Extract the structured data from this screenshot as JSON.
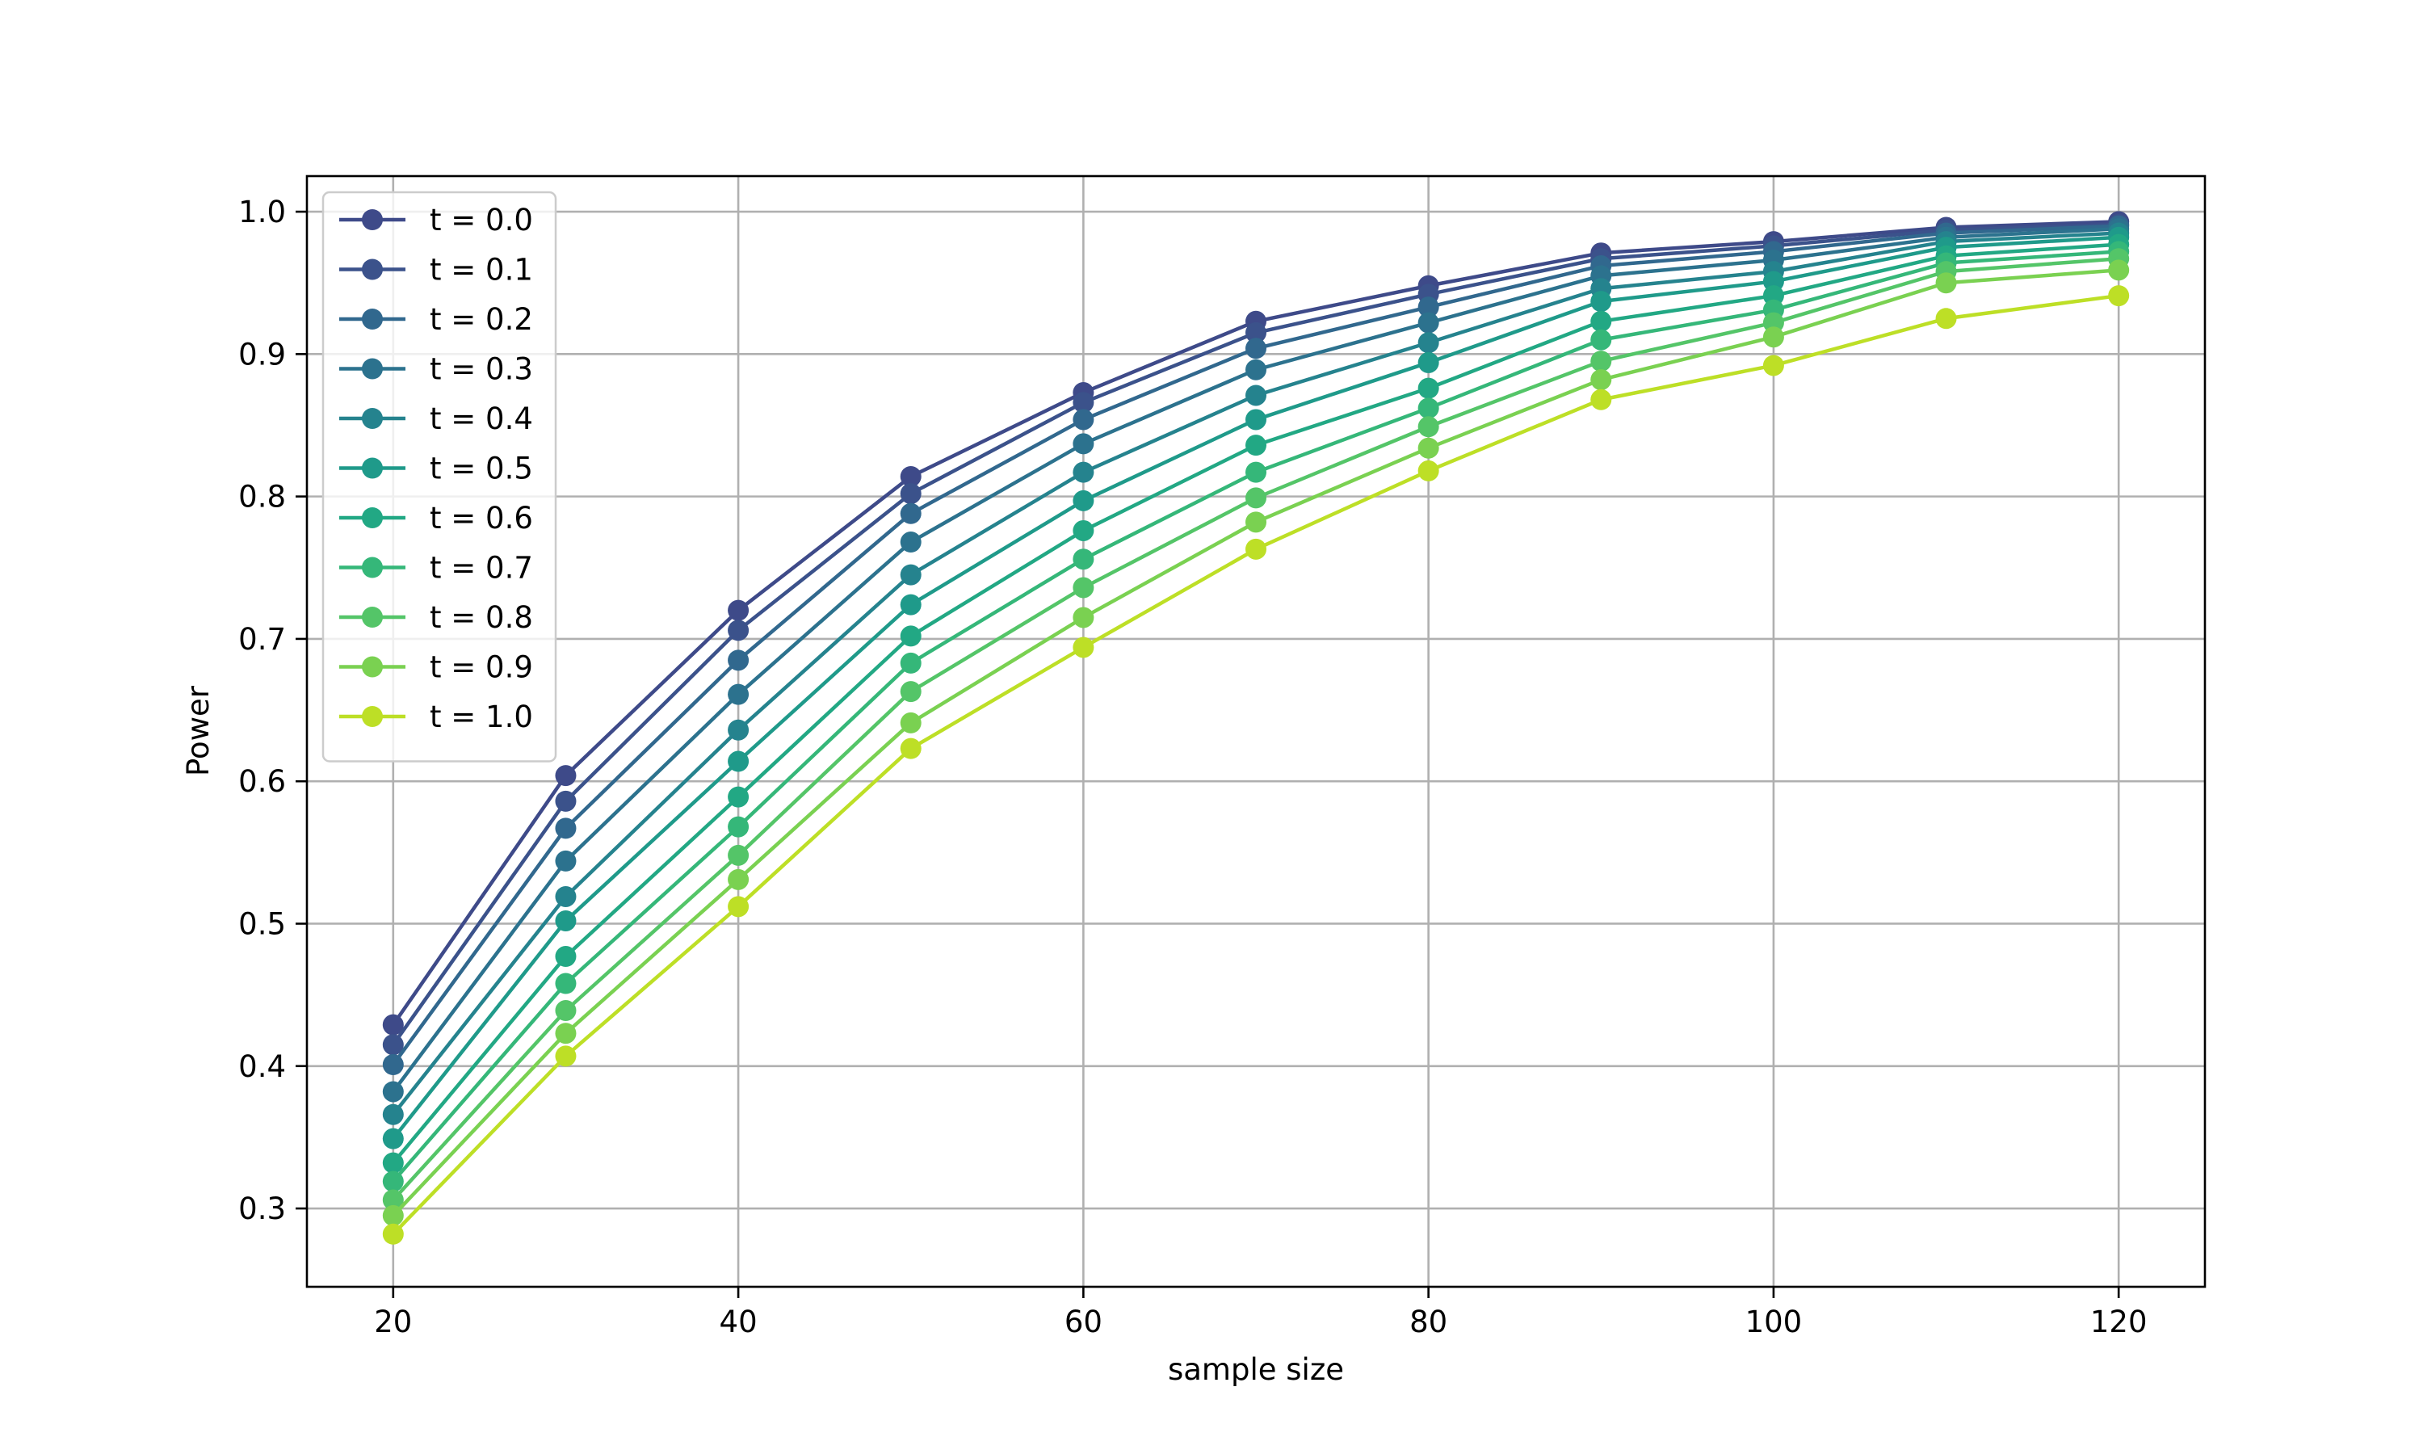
{
  "chart_data": {
    "type": "line",
    "title": "",
    "xlabel": "sample size",
    "ylabel": "Power",
    "xlim": [
      15,
      125
    ],
    "ylim": [
      0.245,
      1.025
    ],
    "x": [
      20,
      30,
      40,
      50,
      60,
      70,
      80,
      90,
      100,
      110,
      120
    ],
    "xticks": [
      20,
      40,
      60,
      80,
      100,
      120
    ],
    "xtick_labels": [
      "20",
      "40",
      "60",
      "80",
      "100",
      "120"
    ],
    "yticks": [
      0.3,
      0.4,
      0.5,
      0.6,
      0.7,
      0.8,
      0.9,
      1.0
    ],
    "ytick_labels": [
      "0.3",
      "0.4",
      "0.5",
      "0.6",
      "0.7",
      "0.8",
      "0.9",
      "1.0"
    ],
    "grid": true,
    "legend_position": "top-left",
    "marker": "circle",
    "series": [
      {
        "name": "t = 0.0",
        "color": "#3e4a89",
        "values": [
          0.429,
          0.604,
          0.72,
          0.814,
          0.873,
          0.923,
          0.948,
          0.971,
          0.979,
          0.989,
          0.993
        ]
      },
      {
        "name": "t = 0.1",
        "color": "#3b528b",
        "values": [
          0.415,
          0.586,
          0.706,
          0.802,
          0.866,
          0.915,
          0.942,
          0.967,
          0.976,
          0.987,
          0.991
        ]
      },
      {
        "name": "t = 0.2",
        "color": "#31688e",
        "values": [
          0.401,
          0.567,
          0.685,
          0.788,
          0.854,
          0.904,
          0.933,
          0.962,
          0.972,
          0.985,
          0.99
        ]
      },
      {
        "name": "t = 0.3",
        "color": "#2c728e",
        "values": [
          0.382,
          0.544,
          0.661,
          0.768,
          0.837,
          0.889,
          0.922,
          0.955,
          0.966,
          0.982,
          0.988
        ]
      },
      {
        "name": "t = 0.4",
        "color": "#25838e",
        "values": [
          0.366,
          0.519,
          0.636,
          0.745,
          0.817,
          0.871,
          0.908,
          0.946,
          0.958,
          0.979,
          0.985
        ]
      },
      {
        "name": "t = 0.5",
        "color": "#1f9a8a",
        "values": [
          0.349,
          0.502,
          0.614,
          0.724,
          0.797,
          0.854,
          0.894,
          0.937,
          0.951,
          0.975,
          0.982
        ]
      },
      {
        "name": "t = 0.6",
        "color": "#22a884",
        "values": [
          0.332,
          0.477,
          0.589,
          0.702,
          0.776,
          0.836,
          0.876,
          0.923,
          0.941,
          0.969,
          0.977
        ]
      },
      {
        "name": "t = 0.7",
        "color": "#35b779",
        "values": [
          0.319,
          0.458,
          0.568,
          0.683,
          0.756,
          0.817,
          0.862,
          0.91,
          0.931,
          0.964,
          0.972
        ]
      },
      {
        "name": "t = 0.8",
        "color": "#54c568",
        "values": [
          0.306,
          0.439,
          0.548,
          0.663,
          0.736,
          0.799,
          0.849,
          0.895,
          0.922,
          0.958,
          0.967
        ]
      },
      {
        "name": "t = 0.9",
        "color": "#7ad151",
        "values": [
          0.295,
          0.423,
          0.531,
          0.641,
          0.715,
          0.782,
          0.834,
          0.882,
          0.912,
          0.95,
          0.959
        ]
      },
      {
        "name": "t = 1.0",
        "color": "#bddf26",
        "values": [
          0.282,
          0.407,
          0.512,
          0.623,
          0.694,
          0.763,
          0.818,
          0.868,
          0.892,
          0.925,
          0.941
        ]
      }
    ]
  }
}
